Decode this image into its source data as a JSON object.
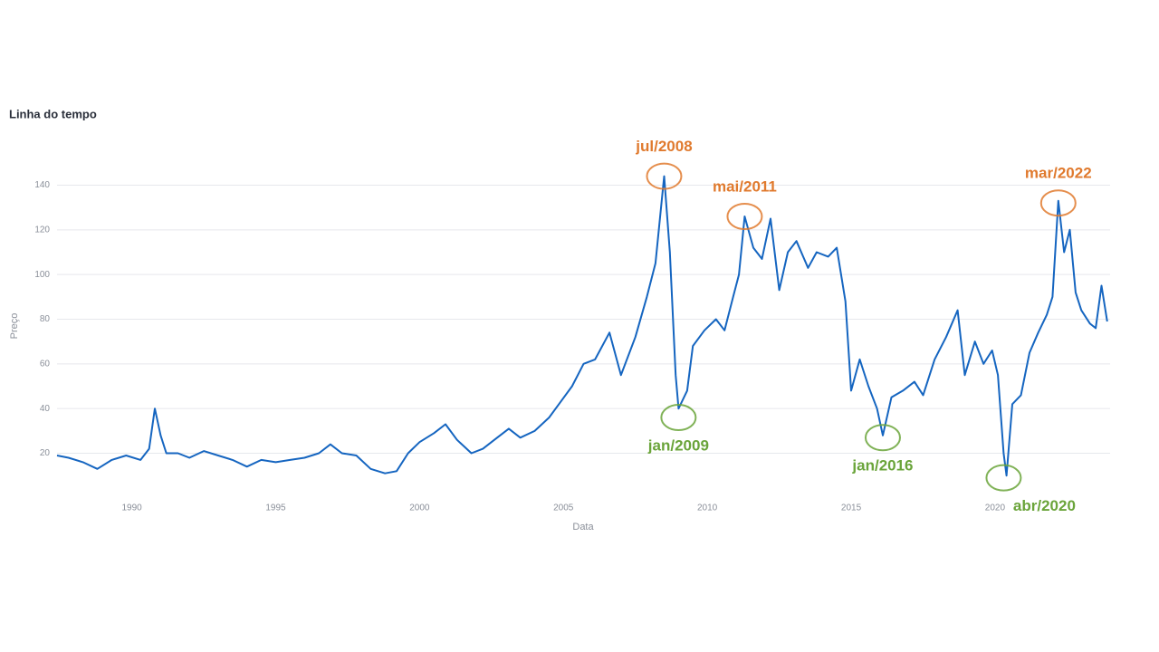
{
  "chart_data": {
    "type": "line",
    "title": "Linha do tempo",
    "xlabel": "Data",
    "ylabel": "Preço",
    "color": "#1565c0",
    "grid": true,
    "xlim": [
      1987.4,
      2024.0
    ],
    "xticks": [
      1990,
      1995,
      2000,
      2005,
      2010,
      2015,
      2020
    ],
    "ylim": [
      4,
      156
    ],
    "yticks": [
      20,
      40,
      60,
      80,
      100,
      120,
      140
    ],
    "x": [
      1987.4,
      1987.8,
      1988.3,
      1988.8,
      1989.3,
      1989.8,
      1990.3,
      1990.6,
      1990.8,
      1991.0,
      1991.2,
      1991.6,
      1992.0,
      1992.5,
      1993.0,
      1993.5,
      1994.0,
      1994.5,
      1995.0,
      1995.5,
      1996.0,
      1996.5,
      1996.9,
      1997.3,
      1997.8,
      1998.3,
      1998.8,
      1999.2,
      1999.6,
      2000.0,
      2000.5,
      2000.9,
      2001.3,
      2001.8,
      2002.2,
      2002.6,
      2003.1,
      2003.5,
      2004.0,
      2004.5,
      2004.9,
      2005.3,
      2005.7,
      2006.1,
      2006.6,
      2007.0,
      2007.5,
      2007.9,
      2008.2,
      2008.5,
      2008.7,
      2008.9,
      2009.0,
      2009.3,
      2009.5,
      2009.9,
      2010.3,
      2010.6,
      2010.9,
      2011.1,
      2011.3,
      2011.6,
      2011.9,
      2012.2,
      2012.5,
      2012.8,
      2013.1,
      2013.5,
      2013.8,
      2014.2,
      2014.5,
      2014.8,
      2015.0,
      2015.3,
      2015.6,
      2015.9,
      2016.1,
      2016.4,
      2016.8,
      2017.2,
      2017.5,
      2017.9,
      2018.3,
      2018.7,
      2018.95,
      2019.3,
      2019.6,
      2019.9,
      2020.1,
      2020.3,
      2020.4,
      2020.6,
      2020.9,
      2021.2,
      2021.5,
      2021.8,
      2022.0,
      2022.2,
      2022.4,
      2022.6,
      2022.8,
      2023.0,
      2023.3,
      2023.5,
      2023.7,
      2023.9
    ],
    "values": [
      19,
      18,
      16,
      13,
      17,
      19,
      17,
      22,
      40,
      28,
      20,
      20,
      18,
      21,
      19,
      17,
      14,
      17,
      16,
      17,
      18,
      20,
      24,
      20,
      19,
      13,
      11,
      12,
      20,
      25,
      29,
      33,
      26,
      20,
      22,
      26,
      31,
      27,
      30,
      36,
      43,
      50,
      60,
      62,
      74,
      55,
      72,
      90,
      105,
      144,
      110,
      55,
      40,
      48,
      68,
      75,
      80,
      75,
      90,
      100,
      126,
      112,
      107,
      125,
      93,
      110,
      115,
      103,
      110,
      108,
      112,
      88,
      48,
      62,
      50,
      40,
      28,
      45,
      48,
      52,
      46,
      62,
      72,
      84,
      55,
      70,
      60,
      66,
      55,
      20,
      10,
      42,
      46,
      65,
      74,
      82,
      90,
      133,
      110,
      120,
      92,
      84,
      78,
      76,
      95,
      79
    ],
    "annotations": [
      {
        "text": "jul/2008",
        "x": 2008.5,
        "y": 144,
        "color": "#e07a2e",
        "position": "above"
      },
      {
        "text": "jan/2009",
        "x": 2009.0,
        "y": 36,
        "color": "#6aa43a",
        "position": "below"
      },
      {
        "text": "mai/2011",
        "x": 2011.3,
        "y": 126,
        "color": "#e07a2e",
        "position": "above"
      },
      {
        "text": "jan/2016",
        "x": 2016.1,
        "y": 27,
        "color": "#6aa43a",
        "position": "below"
      },
      {
        "text": "abr/2020",
        "x": 2020.3,
        "y": 9,
        "color": "#6aa43a",
        "position": "below"
      },
      {
        "text": "mar/2022",
        "x": 2022.2,
        "y": 132,
        "color": "#e07a2e",
        "position": "above"
      }
    ]
  }
}
